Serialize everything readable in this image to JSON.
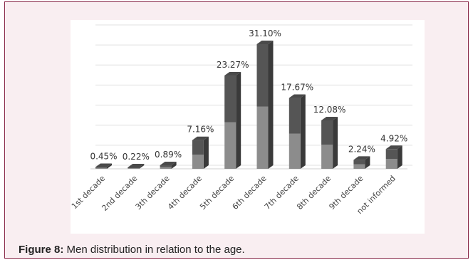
{
  "caption": {
    "label": "Figure 8:",
    "text": "Men distribution in relation to the age."
  },
  "chart_data": {
    "type": "bar",
    "style": "3d-column",
    "categories": [
      "1st decade",
      "2nd decade",
      "3th decade",
      "4th decade",
      "5th decade",
      "6th decade",
      "7th decade",
      "8th decade",
      "9th decade",
      "not informed"
    ],
    "values": [
      0.45,
      0.22,
      0.89,
      7.16,
      23.27,
      31.1,
      17.67,
      12.08,
      2.24,
      4.92
    ],
    "data_labels": [
      "0.45%",
      "0.22%",
      "0.89%",
      "7.16%",
      "23.27%",
      "31.10%",
      "17.67%",
      "12.08%",
      "2.24%",
      "4.92%"
    ],
    "ylim": [
      0,
      35
    ],
    "grid": true,
    "legend": "none",
    "colors": {
      "bar_top": "#555555",
      "bar_bottom": "#8c8c8c",
      "bar_face_dark": "#3a3a3a",
      "grid": "#e0e0e0",
      "frame_bg": "#f9eef1",
      "frame_border": "#8a2a4a"
    }
  }
}
